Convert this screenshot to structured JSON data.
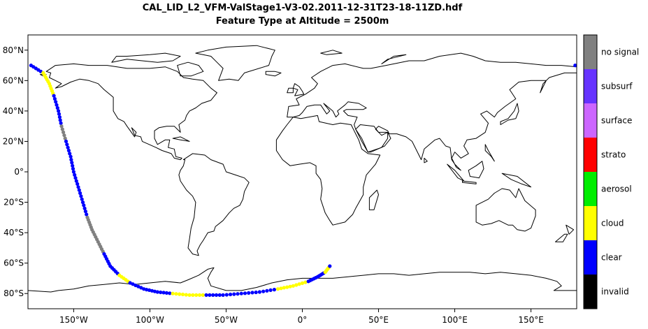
{
  "title": "CAL_LID_L2_VFM-ValStage1-V3-02.2011-12-31T23-18-11ZD.hdf",
  "subtitle": "Feature Type at Altitude = 2500m",
  "axes": {
    "x_ticks": [
      {
        "value": -150,
        "label": "150°W"
      },
      {
        "value": -100,
        "label": "100°W"
      },
      {
        "value": -50,
        "label": "50°W"
      },
      {
        "value": 0,
        "label": "0°"
      },
      {
        "value": 50,
        "label": "50°E"
      },
      {
        "value": 100,
        "label": "100°E"
      },
      {
        "value": 150,
        "label": "150°E"
      }
    ],
    "y_ticks": [
      {
        "value": 80,
        "label": "80°N"
      },
      {
        "value": 60,
        "label": "60°N"
      },
      {
        "value": 40,
        "label": "40°N"
      },
      {
        "value": 20,
        "label": "20°N"
      },
      {
        "value": 0,
        "label": "0°"
      },
      {
        "value": -20,
        "label": "20°S"
      },
      {
        "value": -40,
        "label": "40°S"
      },
      {
        "value": -60,
        "label": "60°S"
      },
      {
        "value": -80,
        "label": "80°S"
      }
    ],
    "lon_range": [
      -180,
      180
    ],
    "lat_range": [
      -90,
      90
    ]
  },
  "legend": {
    "categories": [
      {
        "label": "no signal",
        "color": "#808080"
      },
      {
        "label": "subsurf",
        "color": "#6633ff"
      },
      {
        "label": "surface",
        "color": "#cc66ff"
      },
      {
        "label": "strato",
        "color": "#ff0000"
      },
      {
        "label": "aerosol",
        "color": "#00ee00"
      },
      {
        "label": "cloud",
        "color": "#ffff00"
      },
      {
        "label": "clear",
        "color": "#0000ff"
      },
      {
        "label": "invalid",
        "color": "#000000"
      }
    ]
  },
  "chart_data": {
    "type": "scatter",
    "x_label": "",
    "y_label": "",
    "xlim": [
      -180,
      180
    ],
    "ylim": [
      -90,
      90
    ],
    "grid": false,
    "legend_position": "right colorbar",
    "track_lon": [
      -178,
      -170,
      -166,
      -163,
      -160,
      -158,
      -155,
      -152,
      -150,
      -147,
      -144,
      -141,
      -138,
      -134,
      -130,
      -126,
      -120,
      -113,
      -104,
      -95,
      -85,
      -74,
      -63,
      -52,
      -40,
      -28,
      -16,
      -6,
      4,
      10,
      15,
      18,
      179
    ],
    "track_lat": [
      70,
      65,
      58,
      50,
      40,
      30,
      20,
      10,
      0,
      -10,
      -20,
      -30,
      -38,
      -46,
      -54,
      -62,
      -68,
      -73,
      -77,
      -79,
      -80,
      -81,
      -81,
      -81,
      -80,
      -79,
      -77,
      -75,
      -72,
      -69,
      -66,
      -62,
      70
    ],
    "track_class": [
      "clear",
      "cloud",
      "cloud",
      "clear",
      "clear",
      "no signal",
      "clear",
      "clear",
      "clear",
      "clear",
      "clear",
      "no signal",
      "no signal",
      "no signal",
      "clear",
      "clear",
      "cloud",
      "clear",
      "clear",
      "clear",
      "cloud",
      "cloud",
      "clear",
      "clear",
      "clear",
      "clear",
      "cloud",
      "cloud",
      "clear",
      "clear",
      "cloud",
      "clear",
      "clear"
    ]
  }
}
